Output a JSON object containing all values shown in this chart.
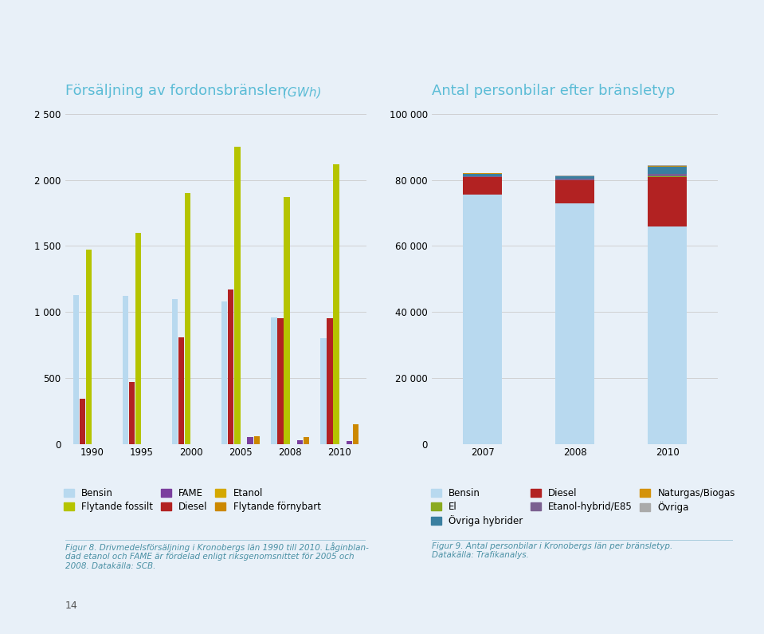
{
  "left_title": "Försäljning av fordonsbränslen",
  "left_title_italic": " (GWh)",
  "left_years": [
    "1990",
    "1995",
    "2000",
    "2005",
    "2008",
    "2010"
  ],
  "left_series": {
    "Bensin": [
      1130,
      1120,
      1100,
      1080,
      960,
      800
    ],
    "Diesel": [
      340,
      470,
      810,
      1170,
      950,
      950
    ],
    "Flytande fossilt": [
      1470,
      1600,
      1900,
      2250,
      1870,
      2120
    ],
    "Etanol": [
      0,
      0,
      0,
      0,
      0,
      0
    ],
    "FAME": [
      0,
      0,
      0,
      50,
      30,
      20
    ],
    "Flytande förnybart": [
      0,
      0,
      0,
      60,
      50,
      150
    ]
  },
  "left_colors": {
    "Bensin": "#b8d9ef",
    "Diesel": "#b22222",
    "Flytande fossilt": "#b5c400",
    "Etanol": "#d4a800",
    "FAME": "#7b3f9e",
    "Flytande förnybart": "#cc8800"
  },
  "left_ylim": [
    0,
    2500
  ],
  "left_yticks": [
    0,
    500,
    1000,
    1500,
    2000,
    2500
  ],
  "left_ytick_labels": [
    "0",
    "500",
    "1 000",
    "1 500",
    "2 000",
    "2 500"
  ],
  "right_title": "Antal personbilar efter bränsletyp",
  "right_years": [
    "2007",
    "2008",
    "2010"
  ],
  "right_series": {
    "Bensin": [
      75500,
      73000,
      66000
    ],
    "Diesel": [
      5500,
      7000,
      15000
    ],
    "El": [
      20,
      20,
      50
    ],
    "Etanol-hybrid/E85": [
      200,
      300,
      800
    ],
    "Övriga hybrider": [
      700,
      800,
      2200
    ],
    "Naturgas/Biogas": [
      100,
      150,
      300
    ],
    "Övriga": [
      100,
      100,
      200
    ]
  },
  "right_colors": {
    "Bensin": "#b8d9ef",
    "Diesel": "#b22222",
    "El": "#8aaa20",
    "Etanol-hybrid/E85": "#7b6090",
    "Övriga hybrider": "#3a7fa0",
    "Naturgas/Biogas": "#d4920a",
    "Övriga": "#aaaaaa"
  },
  "right_ylim": [
    0,
    100000
  ],
  "right_yticks": [
    0,
    20000,
    40000,
    60000,
    80000,
    100000
  ],
  "right_ytick_labels": [
    "0",
    "20 000",
    "40 000",
    "60 000",
    "80 000",
    "100 000"
  ],
  "bg_color": "#e8f0f8",
  "title_color": "#5bbcd6",
  "grid_color": "#cccccc",
  "legend_fontsize": 8.5,
  "tick_fontsize": 8.5,
  "caption_color": "#4a90a4",
  "caption_fontsize": 7.5,
  "body_color": "#555555"
}
